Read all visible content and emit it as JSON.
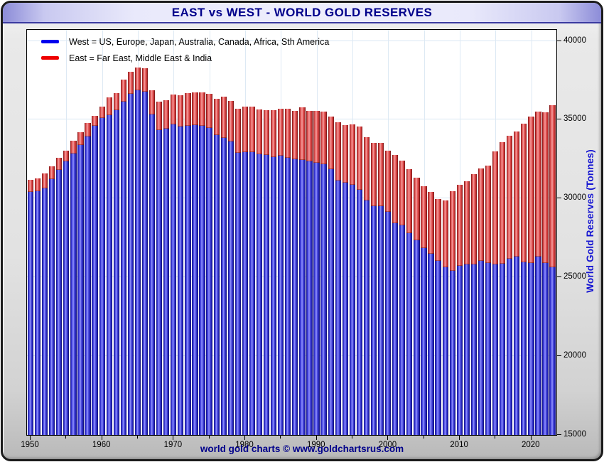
{
  "window": {
    "title": "EAST vs WEST - WORLD GOLD RESERVES",
    "footer_credit": "world gold charts © www.goldchartsrus.com"
  },
  "legend": {
    "west_label": "West = US, Europe, Japan, Australia, Canada, Africa, Sth America",
    "east_label": "East = Far East, Middle East & India",
    "west_swatch_color": "#0000ee",
    "east_swatch_color": "#ee0000"
  },
  "axes": {
    "y_title": "World Gold Reserves (Tonnes)",
    "y_min": 15000,
    "y_top": 40700,
    "y_ticks": [
      15000,
      20000,
      25000,
      30000,
      35000,
      40000
    ],
    "y_gridlines": [
      20000,
      25000,
      30000,
      35000,
      40000
    ],
    "x_major_ticks": [
      1950,
      1960,
      1970,
      1980,
      1990,
      2000,
      2010,
      2020
    ],
    "x_minor_ticks": [
      1955,
      1965,
      1975,
      1985,
      1995,
      2005,
      2015
    ],
    "x_gridline_years": [
      1955,
      1960,
      1965,
      1970,
      1975,
      1980,
      1985,
      1990,
      1995,
      2000,
      2005,
      2010,
      2015,
      2020
    ]
  },
  "colors": {
    "title_text": "#00008b",
    "footer_text": "#00008b",
    "y_title_text": "#1414d2",
    "west_bar": "#2a2ac8",
    "east_bar": "#dd4444"
  },
  "chart_data": {
    "type": "bar",
    "stacked": true,
    "title": "EAST vs WEST - WORLD GOLD RESERVES",
    "xlabel": "",
    "ylabel": "World Gold Reserves (Tonnes)",
    "ylim": [
      15000,
      40700
    ],
    "grid": true,
    "legend_position": "top-left",
    "categories": [
      1950,
      1951,
      1952,
      1953,
      1954,
      1955,
      1956,
      1957,
      1958,
      1959,
      1960,
      1961,
      1962,
      1963,
      1964,
      1965,
      1966,
      1967,
      1968,
      1969,
      1970,
      1971,
      1972,
      1973,
      1974,
      1975,
      1976,
      1977,
      1978,
      1979,
      1980,
      1981,
      1982,
      1983,
      1984,
      1985,
      1986,
      1987,
      1988,
      1989,
      1990,
      1991,
      1992,
      1993,
      1994,
      1995,
      1996,
      1997,
      1998,
      1999,
      2000,
      2001,
      2002,
      2003,
      2004,
      2005,
      2006,
      2007,
      2008,
      2009,
      2010,
      2011,
      2012,
      2013,
      2014,
      2015,
      2016,
      2017,
      2018,
      2019,
      2020,
      2021,
      2022,
      2023
    ],
    "series": [
      {
        "name": "West",
        "values": [
          30400,
          30450,
          30650,
          31250,
          31800,
          32350,
          32850,
          33400,
          33950,
          34600,
          35100,
          35300,
          35600,
          36150,
          36650,
          36850,
          36800,
          35350,
          34350,
          34450,
          34700,
          34550,
          34600,
          34650,
          34600,
          34500,
          34050,
          33850,
          33600,
          32900,
          32950,
          32950,
          32800,
          32750,
          32650,
          32700,
          32600,
          32500,
          32450,
          32350,
          32250,
          32200,
          31850,
          31150,
          31000,
          30850,
          30550,
          29900,
          29500,
          29500,
          29150,
          28450,
          28300,
          27800,
          27350,
          26850,
          26500,
          26050,
          25650,
          25400,
          25750,
          25800,
          25800,
          26050,
          25900,
          25800,
          25850,
          26200,
          26300,
          25950,
          25900,
          26300,
          25900,
          25650
        ]
      },
      {
        "name": "East",
        "values": [
          800,
          850,
          950,
          800,
          800,
          700,
          800,
          800,
          850,
          650,
          750,
          1100,
          1100,
          1400,
          1380,
          1450,
          1450,
          1500,
          1800,
          1800,
          1900,
          2000,
          2100,
          2100,
          2130,
          2140,
          2300,
          2600,
          2600,
          2800,
          2900,
          2870,
          2870,
          2860,
          2960,
          3000,
          3100,
          3060,
          3340,
          3220,
          3320,
          3320,
          3340,
          3700,
          3670,
          3850,
          4000,
          4000,
          4050,
          4020,
          3900,
          4300,
          4100,
          4080,
          3990,
          3940,
          3920,
          3920,
          4250,
          5060,
          5120,
          5290,
          5740,
          5860,
          6190,
          7185,
          7730,
          7795,
          7950,
          8795,
          9290,
          9220,
          9560,
          10290
        ]
      }
    ]
  }
}
